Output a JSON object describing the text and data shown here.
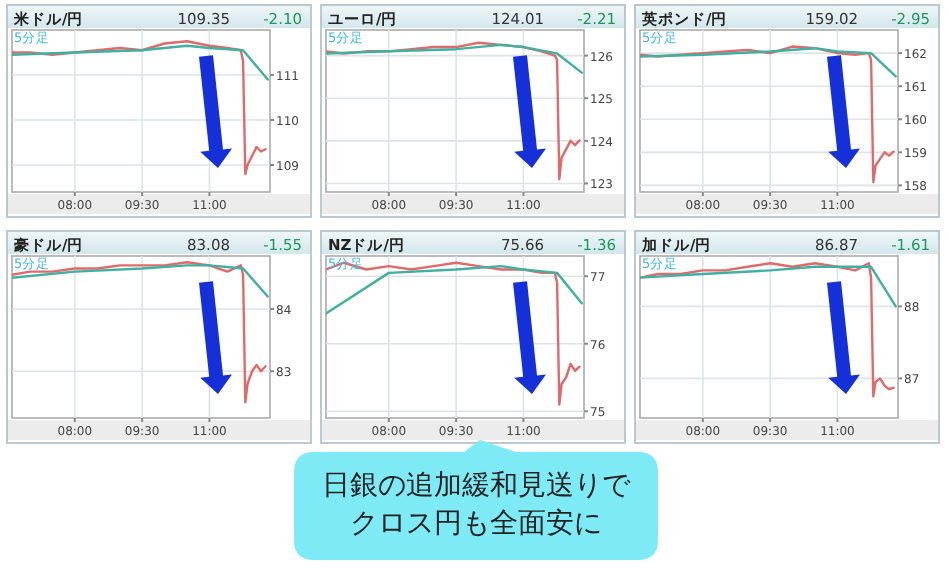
{
  "chart_data": [
    {
      "type": "line",
      "title": "米ドル/円",
      "subtitle": "109.35",
      "annotations": [
        "-2.10",
        "5分足"
      ],
      "xlim": [
        6.6,
        12.35
      ],
      "xticks": [
        {
          "value": 8,
          "label": "08:00"
        },
        {
          "value": 9.5,
          "label": "09:30"
        },
        {
          "value": 11,
          "label": "11:00"
        }
      ],
      "ylim": [
        108.4,
        112.0
      ],
      "yticks": [
        109,
        110,
        111
      ],
      "grid": true,
      "series": [
        {
          "color": "#e06a6a",
          "x": [
            6.6,
            7.0,
            7.5,
            8.0,
            8.5,
            9.0,
            9.5,
            10.0,
            10.5,
            11.0,
            11.4,
            11.7,
            11.75,
            11.8,
            11.85,
            11.95,
            12.05,
            12.15,
            12.25
          ],
          "values": [
            111.5,
            111.5,
            111.45,
            111.5,
            111.55,
            111.6,
            111.55,
            111.7,
            111.75,
            111.65,
            111.6,
            111.55,
            111.3,
            108.8,
            109.0,
            109.2,
            109.4,
            109.3,
            109.35
          ]
        },
        {
          "color": "#40b0a0",
          "x": [
            6.6,
            8.0,
            9.5,
            10.5,
            11.0,
            11.75,
            12.3
          ],
          "values": [
            111.45,
            111.5,
            111.55,
            111.65,
            111.6,
            111.55,
            110.9
          ]
        }
      ]
    },
    {
      "type": "line",
      "title": "ユーロ/円",
      "subtitle": "124.01",
      "annotations": [
        "-2.21",
        "5分足"
      ],
      "xlim": [
        6.6,
        12.35
      ],
      "xticks": [
        {
          "value": 8,
          "label": "08:00"
        },
        {
          "value": 9.5,
          "label": "09:30"
        },
        {
          "value": 11,
          "label": "11:00"
        }
      ],
      "ylim": [
        122.8,
        126.6
      ],
      "yticks": [
        123,
        124,
        125,
        126
      ],
      "grid": true,
      "series": [
        {
          "color": "#e06a6a",
          "x": [
            6.6,
            7.0,
            7.5,
            8.0,
            8.5,
            9.0,
            9.5,
            10.0,
            10.5,
            11.0,
            11.4,
            11.7,
            11.75,
            11.8,
            11.85,
            11.95,
            12.05,
            12.15,
            12.25
          ],
          "values": [
            126.1,
            126.05,
            126.1,
            126.1,
            126.15,
            126.2,
            126.2,
            126.3,
            126.25,
            126.2,
            126.1,
            126.0,
            125.9,
            123.1,
            123.6,
            123.8,
            124.0,
            123.9,
            124.01
          ]
        },
        {
          "color": "#40b0a0",
          "x": [
            6.6,
            8.0,
            9.5,
            10.5,
            11.0,
            11.75,
            12.3
          ],
          "values": [
            126.05,
            126.1,
            126.15,
            126.25,
            126.2,
            126.05,
            125.6
          ]
        }
      ]
    },
    {
      "type": "line",
      "title": "英ポンド/円",
      "subtitle": "159.02",
      "annotations": [
        "-2.95",
        "5分足"
      ],
      "xlim": [
        6.6,
        12.35
      ],
      "xticks": [
        {
          "value": 8,
          "label": "08:00"
        },
        {
          "value": 9.5,
          "label": "09:30"
        },
        {
          "value": 11,
          "label": "11:00"
        }
      ],
      "ylim": [
        157.8,
        162.7
      ],
      "yticks": [
        158,
        159,
        160,
        161,
        162
      ],
      "grid": true,
      "series": [
        {
          "color": "#e06a6a",
          "x": [
            6.6,
            7.0,
            7.5,
            8.0,
            8.5,
            9.0,
            9.5,
            10.0,
            10.5,
            11.0,
            11.4,
            11.7,
            11.75,
            11.8,
            11.85,
            11.95,
            12.05,
            12.15,
            12.25
          ],
          "values": [
            161.95,
            161.9,
            161.95,
            162.0,
            162.05,
            162.1,
            162.0,
            162.2,
            162.15,
            162.0,
            161.95,
            162.0,
            161.8,
            158.1,
            158.6,
            158.8,
            159.0,
            158.9,
            159.02
          ]
        },
        {
          "color": "#40b0a0",
          "x": [
            6.6,
            8.0,
            9.5,
            10.5,
            11.0,
            11.75,
            12.3
          ],
          "values": [
            161.9,
            161.95,
            162.05,
            162.15,
            162.05,
            162.0,
            161.3
          ]
        }
      ]
    },
    {
      "type": "line",
      "title": "豪ドル/円",
      "subtitle": "83.08",
      "annotations": [
        "-1.55",
        "5分足"
      ],
      "xlim": [
        6.6,
        12.35
      ],
      "xticks": [
        {
          "value": 8,
          "label": "08:00"
        },
        {
          "value": 9.5,
          "label": "09:30"
        },
        {
          "value": 11,
          "label": "11:00"
        }
      ],
      "ylim": [
        82.25,
        84.85
      ],
      "yticks": [
        83,
        84
      ],
      "grid": true,
      "series": [
        {
          "color": "#e06a6a",
          "x": [
            6.6,
            7.0,
            7.5,
            8.0,
            8.5,
            9.0,
            9.5,
            10.0,
            10.5,
            11.0,
            11.4,
            11.7,
            11.75,
            11.8,
            11.85,
            11.95,
            12.05,
            12.15,
            12.25
          ],
          "values": [
            84.55,
            84.6,
            84.6,
            84.65,
            84.65,
            84.7,
            84.7,
            84.7,
            84.75,
            84.7,
            84.6,
            84.7,
            84.55,
            82.5,
            82.8,
            83.0,
            83.1,
            83.0,
            83.08
          ]
        },
        {
          "color": "#40b0a0",
          "x": [
            6.6,
            8.0,
            9.5,
            10.5,
            11.0,
            11.75,
            12.3
          ],
          "values": [
            84.5,
            84.6,
            84.65,
            84.7,
            84.7,
            84.65,
            84.2
          ]
        }
      ]
    },
    {
      "type": "line",
      "title": "NZドル/円",
      "subtitle": "75.66",
      "annotations": [
        "-1.36",
        "5分足",
        "日銀の追加緩和見送りで",
        "クロス円も全面安に"
      ],
      "xlim": [
        6.6,
        12.35
      ],
      "xticks": [
        {
          "value": 8,
          "label": "08:00"
        },
        {
          "value": 9.5,
          "label": "09:30"
        },
        {
          "value": 11,
          "label": "11:00"
        }
      ],
      "ylim": [
        74.9,
        77.3
      ],
      "yticks": [
        75,
        76,
        77
      ],
      "grid": true,
      "series": [
        {
          "color": "#e06a6a",
          "x": [
            6.6,
            7.0,
            7.5,
            8.0,
            8.5,
            9.0,
            9.5,
            10.0,
            10.5,
            11.0,
            11.4,
            11.7,
            11.75,
            11.8,
            11.85,
            11.95,
            12.05,
            12.15,
            12.25
          ],
          "values": [
            77.1,
            77.2,
            77.1,
            77.15,
            77.1,
            77.15,
            77.2,
            77.15,
            77.1,
            77.1,
            77.05,
            77.05,
            76.9,
            75.1,
            75.4,
            75.5,
            75.7,
            75.6,
            75.66
          ]
        },
        {
          "color": "#40b0a0",
          "x": [
            6.6,
            8.0,
            9.5,
            10.5,
            11.0,
            11.75,
            12.3
          ],
          "values": [
            76.45,
            77.05,
            77.1,
            77.15,
            77.1,
            77.05,
            76.6
          ]
        }
      ]
    },
    {
      "type": "line",
      "title": "加ドル/円",
      "subtitle": "86.87",
      "annotations": [
        "-1.61",
        "5分足"
      ],
      "xlim": [
        6.6,
        12.35
      ],
      "xticks": [
        {
          "value": 8,
          "label": "08:00"
        },
        {
          "value": 9.5,
          "label": "09:30"
        },
        {
          "value": 11,
          "label": "11:00"
        }
      ],
      "ylim": [
        86.45,
        88.7
      ],
      "yticks": [
        87,
        88
      ],
      "grid": true,
      "series": [
        {
          "color": "#e06a6a",
          "x": [
            6.6,
            7.0,
            7.5,
            8.0,
            8.5,
            9.0,
            9.5,
            10.0,
            10.5,
            11.0,
            11.4,
            11.7,
            11.75,
            11.8,
            11.85,
            11.95,
            12.05,
            12.15,
            12.25
          ],
          "values": [
            88.4,
            88.45,
            88.45,
            88.5,
            88.5,
            88.55,
            88.6,
            88.55,
            88.6,
            88.55,
            88.5,
            88.6,
            88.4,
            86.75,
            86.95,
            87.0,
            86.9,
            86.85,
            86.87
          ]
        },
        {
          "color": "#40b0a0",
          "x": [
            6.6,
            8.0,
            9.5,
            10.5,
            11.0,
            11.75,
            12.3
          ],
          "values": [
            88.4,
            88.45,
            88.5,
            88.55,
            88.55,
            88.55,
            88.0
          ]
        }
      ]
    }
  ]
}
